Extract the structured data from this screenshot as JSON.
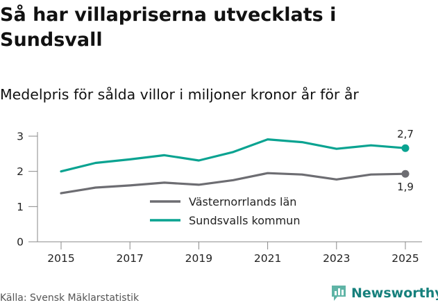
{
  "title": "Så har villapriserna utvecklats i Sundsvall",
  "subtitle": "Medelpris för sålda villor i miljoner kronor år för år",
  "source": "Källa: Svensk Mäklarstatistik",
  "brand": "Newsworthy",
  "brand_icon": "bar-chart-bubble-icon",
  "colors": {
    "sundsvall": "#0aa391",
    "lan": "#6d6d72",
    "axis": "#888888",
    "brand": "#16807c"
  },
  "chart_data": {
    "type": "line",
    "x": [
      2015,
      2016,
      2017,
      2018,
      2019,
      2020,
      2021,
      2022,
      2023,
      2024,
      2025
    ],
    "x_ticks": [
      "2015",
      "2017",
      "2019",
      "2021",
      "2023",
      "2025"
    ],
    "y_ticks": [
      "0",
      "1",
      "2",
      "3"
    ],
    "ylim": [
      0,
      3
    ],
    "xlim": [
      2015,
      2025
    ],
    "grid": false,
    "legend_position": "center",
    "series": [
      {
        "name": "Västernorrlands län",
        "color": "#6d6d72",
        "values": [
          1.38,
          1.54,
          1.6,
          1.68,
          1.62,
          1.75,
          1.95,
          1.91,
          1.77,
          1.91,
          1.93
        ],
        "end_label": "1,9"
      },
      {
        "name": "Sundsvalls kommun",
        "color": "#0aa391",
        "values": [
          2.0,
          2.24,
          2.34,
          2.46,
          2.31,
          2.55,
          2.91,
          2.83,
          2.64,
          2.74,
          2.66
        ],
        "end_label": "2,7"
      }
    ]
  }
}
